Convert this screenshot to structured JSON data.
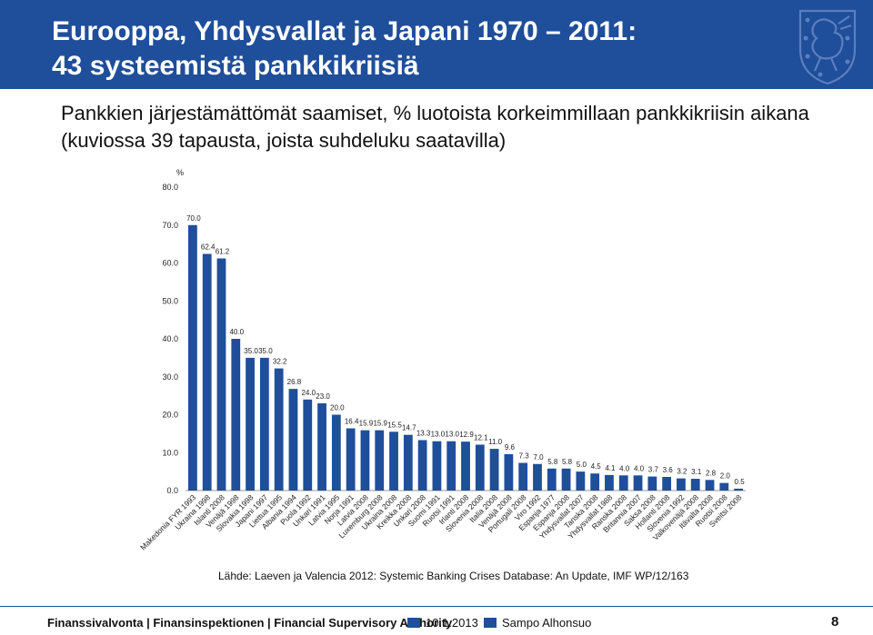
{
  "slide": {
    "title_line1": "Eurooppa, Yhdysvallat ja Japani 1970 – 2011:",
    "title_line2": "43  systeemistä pankkikriisiä",
    "subtitle": "Pankkien järjestämättömät saamiset, % luotoista korkeimmillaan pankkikriisin aikana (kuviossa 39 tapausta, joista suhdeluku saatavilla)",
    "source": "Lähde: Laeven ja Valencia 2012: Systemic Banking Crises Database: An Update, IMF WP/12/163",
    "footer": {
      "organization": "Finanssivalvonta | Finansinspektionen | Financial Supervisory Authority",
      "date": "10.1.2013",
      "author": "Sampo Alhonsuo",
      "page": "8"
    },
    "colors": {
      "header": "#1f4e9a",
      "bars": "#1f4e9a",
      "emblem": "#5b7fbf"
    },
    "emblem_icon": "lion-coat-of-arms-icon"
  },
  "chart_data": {
    "type": "bar",
    "ylabel": "%",
    "ylim": [
      0,
      80
    ],
    "yticks": [
      "0.0",
      "10.0",
      "20.0",
      "30.0",
      "40.0",
      "50.0",
      "60.0",
      "70.0",
      "80.0"
    ],
    "grid": false,
    "data_labels": true,
    "categories": [
      "Makedonia FYR 1993",
      "Ukraina 1998",
      "Islanti 2008",
      "Venäjä 1998",
      "Slovakia 1998",
      "Japani 1997",
      "Liettua 1995",
      "Albania 1994",
      "Puola 1992",
      "Unkari 1991",
      "Latvia 1995",
      "Norja 1991",
      "Latvia 2008",
      "Luxemburg 2008",
      "Ukraina 2008",
      "Kreikka 2008",
      "Unkari 2008",
      "Suomi 1991",
      "Ruotsi 1991",
      "Irlanti 2008",
      "Slovenia 2008",
      "Italia 2008",
      "Venäjä 2008",
      "Portugali 2008",
      "Viro 1992",
      "Espanja 1977",
      "Espanja 2008",
      "Yhdysvallat 2007",
      "Tanska 2008",
      "Yhdysvallat 1988",
      "Ranska 2008",
      "Britannia 2007",
      "Saksa 2008",
      "Hollanti 2008",
      "Slovenia 1992",
      "Valkovenäjä 2008",
      "Itävalta 2008",
      "Ruotsi 2008",
      "Sveitsi 2008"
    ],
    "values": [
      70.0,
      62.4,
      61.2,
      40.0,
      35.0,
      35.0,
      32.2,
      26.8,
      24.0,
      23.0,
      20.0,
      16.4,
      15.9,
      15.9,
      15.5,
      14.7,
      13.3,
      13.0,
      13.0,
      12.9,
      12.1,
      11.0,
      9.6,
      7.3,
      7.0,
      5.8,
      5.8,
      5.0,
      4.5,
      4.1,
      4.0,
      4.0,
      3.7,
      3.6,
      3.2,
      3.1,
      2.8,
      2.0,
      0.5
    ]
  }
}
